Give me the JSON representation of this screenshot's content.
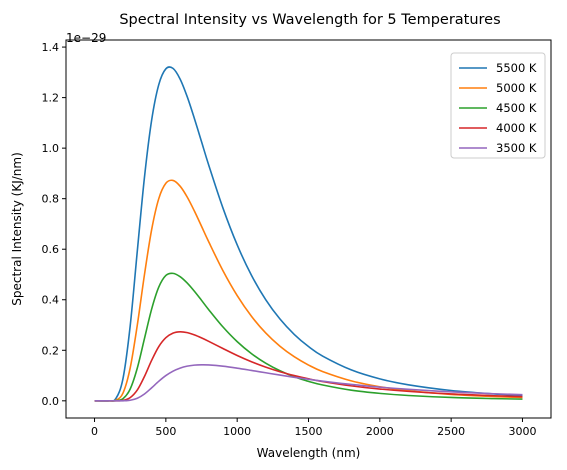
{
  "chart_data": {
    "type": "line",
    "title": "Spectral Intensity vs Wavelength for 5 Temperatures",
    "xlabel": "Wavelength (nm)",
    "ylabel": "Spectral Intensity (KJ/nm)",
    "y_offset_label": "1e−29",
    "xlim": [
      -200,
      3200
    ],
    "ylim": [
      -0.068,
      1.428
    ],
    "x_ticks": [
      0,
      500,
      1000,
      1500,
      2000,
      2500,
      3000
    ],
    "x_tick_labels": [
      "0",
      "500",
      "1000",
      "1500",
      "2000",
      "2500",
      "3000"
    ],
    "y_ticks": [
      0.0,
      0.2,
      0.4,
      0.6,
      0.8,
      1.0,
      1.2,
      1.4
    ],
    "y_tick_labels": [
      "0.0",
      "0.2",
      "0.4",
      "0.6",
      "0.8",
      "1.0",
      "1.2",
      "1.4"
    ],
    "grid": false,
    "legend_position": "top-right",
    "x": [
      1,
      100,
      150,
      200,
      250,
      300,
      350,
      400,
      450,
      500,
      550,
      600,
      650,
      700,
      750,
      800,
      900,
      1000,
      1100,
      1200,
      1300,
      1400,
      1500,
      1600,
      1800,
      2000,
      2200,
      2500,
      2800,
      3000
    ],
    "series": [
      {
        "name": "5500 K",
        "color": "#1f77b4",
        "values": [
          0,
          0.0001,
          0.0094,
          0.0895,
          0.2967,
          0.5935,
          0.8844,
          1.1095,
          1.2507,
          1.314,
          1.3156,
          1.2733,
          1.2031,
          1.1175,
          1.0257,
          0.9338,
          0.7634,
          0.6172,
          0.4969,
          0.4003,
          0.3236,
          0.2629,
          0.2148,
          0.1767,
          0.1223,
          0.0869,
          0.0634,
          0.0408,
          0.0274,
          0.0213
        ]
      },
      {
        "name": "5000 K",
        "color": "#ff7f0e",
        "values": [
          0,
          0,
          0.0023,
          0.0313,
          0.13,
          0.3003,
          0.4992,
          0.6763,
          0.7995,
          0.8609,
          0.8723,
          0.8495,
          0.8062,
          0.7512,
          0.6909,
          0.6299,
          0.5153,
          0.4165,
          0.3346,
          0.2685,
          0.216,
          0.1745,
          0.1416,
          0.1157,
          0.079,
          0.0555,
          0.04,
          0.0253,
          0.0168,
          0.013
        ]
      },
      {
        "name": "4500 K",
        "color": "#2ca02c",
        "values": [
          0,
          0,
          0.0004,
          0.0086,
          0.0468,
          0.13,
          0.2463,
          0.3622,
          0.4496,
          0.4961,
          0.5044,
          0.4912,
          0.4659,
          0.4336,
          0.3978,
          0.3611,
          0.2926,
          0.2343,
          0.1868,
          0.1488,
          0.1189,
          0.0954,
          0.077,
          0.0626,
          0.0421,
          0.0294,
          0.0211,
          0.0132,
          0.0087,
          0.0067
        ]
      },
      {
        "name": "4000 K",
        "color": "#d62728",
        "values": [
          0,
          0,
          0,
          0.0016,
          0.0126,
          0.043,
          0.0963,
          0.1597,
          0.2143,
          0.2497,
          0.268,
          0.2732,
          0.2698,
          0.2609,
          0.249,
          0.2356,
          0.207,
          0.1794,
          0.1547,
          0.1333,
          0.1151,
          0.0999,
          0.087,
          0.0762,
          0.0592,
          0.0467,
          0.0374,
          0.0271,
          0.0201,
          0.0165
        ]
      },
      {
        "name": "3500 K",
        "color": "#9467bd",
        "values": [
          0,
          0,
          0,
          0.0002,
          0.0023,
          0.0102,
          0.027,
          0.0512,
          0.0772,
          0.0999,
          0.1174,
          0.1296,
          0.1372,
          0.1412,
          0.1425,
          0.1419,
          0.137,
          0.1293,
          0.1203,
          0.111,
          0.1018,
          0.0931,
          0.0851,
          0.0777,
          0.0647,
          0.0541,
          0.0455,
          0.0354,
          0.028,
          0.0242
        ]
      }
    ]
  }
}
